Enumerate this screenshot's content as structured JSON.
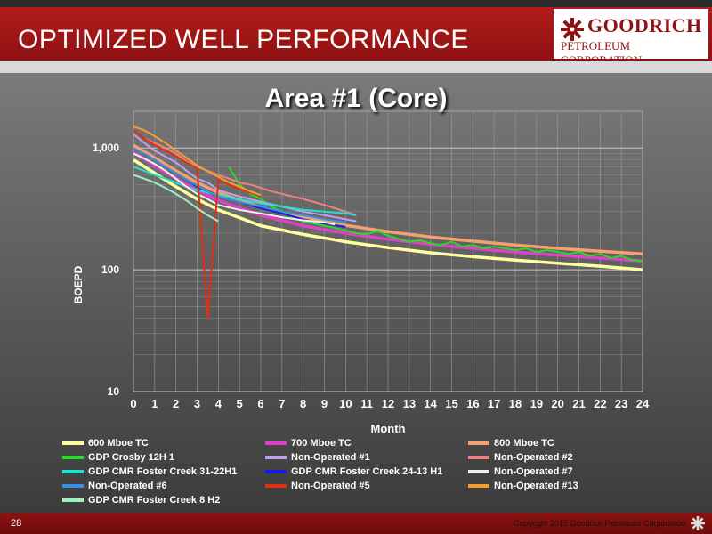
{
  "header": {
    "title": "OPTIMIZED WELL PERFORMANCE"
  },
  "logo": {
    "name": "GOODRICH",
    "subtitle": "PETROLEUM CORPORATION",
    "icon": "gear-icon"
  },
  "footer": {
    "page_number": "28",
    "copyright": "Copyright 2015 Goodrich Petroleum Corporation",
    "icon": "gear-icon"
  },
  "chart_data": {
    "type": "line",
    "title": "Area #1 (Core)",
    "xlabel": "Month",
    "ylabel": "BOEPD",
    "y_scale": "log",
    "ylim": [
      10,
      2000
    ],
    "xlim": [
      0,
      24
    ],
    "x_ticks": [
      "0",
      "1",
      "2",
      "3",
      "4",
      "5",
      "6",
      "7",
      "8",
      "9",
      "10",
      "11",
      "12",
      "13",
      "14",
      "15",
      "16",
      "17",
      "18",
      "19",
      "20",
      "21",
      "22",
      "23",
      "24"
    ],
    "y_ticks": [
      "10",
      "100",
      "1,000"
    ],
    "grid": true,
    "legend_position": "bottom",
    "series": [
      {
        "name": "600 Mboe TC",
        "color": "#ffffa0",
        "points": [
          [
            0,
            800
          ],
          [
            1,
            620
          ],
          [
            2,
            480
          ],
          [
            3,
            380
          ],
          [
            4,
            310
          ],
          [
            6,
            230
          ],
          [
            8,
            195
          ],
          [
            10,
            170
          ],
          [
            12,
            152
          ],
          [
            14,
            138
          ],
          [
            16,
            128
          ],
          [
            18,
            120
          ],
          [
            20,
            113
          ],
          [
            22,
            107
          ],
          [
            24,
            100
          ]
        ]
      },
      {
        "name": "700 Mboe TC",
        "color": "#e040c8",
        "points": [
          [
            0,
            920
          ],
          [
            1,
            720
          ],
          [
            2,
            560
          ],
          [
            3,
            450
          ],
          [
            4,
            370
          ],
          [
            6,
            280
          ],
          [
            8,
            230
          ],
          [
            10,
            200
          ],
          [
            12,
            178
          ],
          [
            14,
            162
          ],
          [
            16,
            150
          ],
          [
            18,
            140
          ],
          [
            20,
            132
          ],
          [
            22,
            125
          ],
          [
            24,
            118
          ]
        ]
      },
      {
        "name": "800 Mboe TC",
        "color": "#f4a070",
        "points": [
          [
            0,
            1050
          ],
          [
            1,
            830
          ],
          [
            2,
            650
          ],
          [
            3,
            520
          ],
          [
            4,
            430
          ],
          [
            6,
            325
          ],
          [
            8,
            270
          ],
          [
            10,
            232
          ],
          [
            12,
            205
          ],
          [
            14,
            186
          ],
          [
            16,
            172
          ],
          [
            18,
            160
          ],
          [
            20,
            150
          ],
          [
            22,
            142
          ],
          [
            24,
            135
          ]
        ]
      },
      {
        "name": "GDP Crosby 12H 1",
        "color": "#22dd22",
        "points": [
          [
            4.5,
            700
          ],
          [
            5,
            500
          ],
          [
            5.5,
            420
          ],
          [
            6,
            380
          ],
          [
            6.5,
            330
          ],
          [
            7,
            300
          ],
          [
            7.5,
            270
          ],
          [
            8,
            250
          ],
          [
            8.5,
            240
          ],
          [
            9,
            230
          ],
          [
            9.5,
            220
          ],
          [
            10,
            210
          ],
          [
            10.5,
            200
          ],
          [
            11,
            195
          ],
          [
            11.5,
            210
          ],
          [
            12,
            190
          ],
          [
            12.5,
            180
          ],
          [
            13,
            170
          ],
          [
            13.5,
            175
          ],
          [
            14,
            165
          ],
          [
            14.5,
            160
          ],
          [
            15,
            170
          ],
          [
            15.5,
            155
          ],
          [
            16,
            160
          ],
          [
            16.5,
            150
          ],
          [
            17,
            155
          ],
          [
            17.5,
            150
          ],
          [
            18,
            145
          ],
          [
            18.5,
            150
          ],
          [
            19,
            140
          ],
          [
            19.5,
            145
          ],
          [
            20,
            140
          ],
          [
            20.5,
            135
          ],
          [
            21,
            140
          ],
          [
            21.5,
            130
          ],
          [
            22,
            135
          ],
          [
            22.5,
            125
          ],
          [
            23,
            130
          ],
          [
            23.5,
            120
          ],
          [
            24,
            118
          ]
        ]
      },
      {
        "name": "Non-Operated #1",
        "color": "#c0a0f0",
        "points": [
          [
            0,
            1300
          ],
          [
            0.5,
            1100
          ],
          [
            1,
            950
          ],
          [
            1.5,
            850
          ],
          [
            2,
            760
          ],
          [
            2.5,
            650
          ],
          [
            3,
            560
          ],
          [
            3.5,
            520
          ],
          [
            4,
            450
          ],
          [
            5,
            400
          ],
          [
            6,
            360
          ],
          [
            7,
            330
          ],
          [
            8,
            300
          ],
          [
            9,
            280
          ],
          [
            10,
            260
          ],
          [
            10.5,
            250
          ]
        ]
      },
      {
        "name": "Non-Operated #2",
        "color": "#f08080",
        "points": [
          [
            0.5,
            1200
          ],
          [
            1,
            1100
          ],
          [
            1.5,
            1000
          ],
          [
            2,
            900
          ],
          [
            2.5,
            780
          ],
          [
            3,
            700
          ],
          [
            3.5,
            650
          ],
          [
            4,
            600
          ],
          [
            4.5,
            560
          ],
          [
            5,
            520
          ],
          [
            5.5,
            500
          ],
          [
            6,
            470
          ],
          [
            6.5,
            440
          ],
          [
            7,
            420
          ],
          [
            7.5,
            400
          ],
          [
            8,
            380
          ],
          [
            8.5,
            360
          ],
          [
            9,
            340
          ],
          [
            9.5,
            320
          ],
          [
            10,
            300
          ],
          [
            10.5,
            280
          ]
        ]
      },
      {
        "name": "GDP CMR Foster Creek 31-22H1",
        "color": "#20e0d0",
        "points": [
          [
            0,
            700
          ],
          [
            0.5,
            650
          ],
          [
            1,
            600
          ],
          [
            1.5,
            560
          ],
          [
            2,
            520
          ],
          [
            2.5,
            480
          ],
          [
            3,
            450
          ],
          [
            4,
            410
          ],
          [
            5,
            380
          ],
          [
            6,
            350
          ],
          [
            7,
            330
          ],
          [
            8,
            310
          ],
          [
            9,
            300
          ],
          [
            10,
            290
          ],
          [
            10.5,
            280
          ]
        ]
      },
      {
        "name": "GDP CMR Foster Creek 24-13 H1",
        "color": "#1a1aee",
        "points": [
          [
            0.5,
            900
          ],
          [
            1,
            800
          ],
          [
            1.5,
            700
          ],
          [
            2,
            620
          ],
          [
            2.5,
            550
          ],
          [
            3,
            480
          ],
          [
            3.5,
            440
          ],
          [
            4,
            400
          ],
          [
            5,
            360
          ],
          [
            6,
            320
          ],
          [
            7,
            290
          ],
          [
            8,
            260
          ],
          [
            9,
            240
          ],
          [
            10,
            225
          ]
        ]
      },
      {
        "name": "Non-Operated #7",
        "color": "#f0f0f0",
        "points": [
          [
            0,
            900
          ],
          [
            0.5,
            820
          ],
          [
            1,
            740
          ],
          [
            1.5,
            650
          ],
          [
            2,
            560
          ],
          [
            2.5,
            480
          ],
          [
            3,
            420
          ],
          [
            3.5,
            380
          ],
          [
            4,
            340
          ],
          [
            5,
            310
          ],
          [
            6,
            290
          ],
          [
            7,
            270
          ],
          [
            8,
            255
          ],
          [
            9,
            245
          ],
          [
            9.5,
            235
          ]
        ]
      },
      {
        "name": "Non-Operated #6",
        "color": "#3a90e0",
        "points": [
          [
            0,
            1000
          ],
          [
            0.5,
            900
          ],
          [
            1,
            800
          ],
          [
            1.5,
            700
          ],
          [
            2,
            620
          ],
          [
            2.5,
            550
          ],
          [
            3,
            490
          ],
          [
            3.5,
            440
          ],
          [
            4,
            400
          ],
          [
            5,
            360
          ],
          [
            6,
            330
          ],
          [
            7,
            300
          ],
          [
            8,
            280
          ],
          [
            9,
            260
          ],
          [
            10,
            245
          ]
        ]
      },
      {
        "name": "Non-Operated #5",
        "color": "#e03010",
        "points": [
          [
            0,
            1400
          ],
          [
            0.5,
            1200
          ],
          [
            1,
            1050
          ],
          [
            1.5,
            950
          ],
          [
            2,
            850
          ],
          [
            2.5,
            760
          ],
          [
            3,
            680
          ],
          [
            3.5,
            40
          ],
          [
            4,
            550
          ],
          [
            4.5,
            500
          ],
          [
            5,
            460
          ],
          [
            5.5,
            430
          ],
          [
            6,
            400
          ]
        ]
      },
      {
        "name": "Non-Operated #13",
        "color": "#f0a030",
        "points": [
          [
            0,
            1500
          ],
          [
            0.5,
            1400
          ],
          [
            1,
            1250
          ],
          [
            1.5,
            1100
          ],
          [
            2,
            950
          ],
          [
            2.5,
            830
          ],
          [
            3,
            720
          ],
          [
            3.5,
            640
          ],
          [
            4,
            580
          ],
          [
            4.5,
            520
          ],
          [
            5,
            480
          ],
          [
            5.5,
            440
          ],
          [
            6,
            410
          ]
        ]
      },
      {
        "name": "GDP CMR Foster Creek 8 H2",
        "color": "#a0f0c0",
        "points": [
          [
            0,
            600
          ],
          [
            0.5,
            560
          ],
          [
            1,
            520
          ],
          [
            1.5,
            470
          ],
          [
            2,
            420
          ],
          [
            2.5,
            370
          ],
          [
            3,
            320
          ],
          [
            3.5,
            280
          ],
          [
            4,
            250
          ]
        ]
      }
    ]
  }
}
